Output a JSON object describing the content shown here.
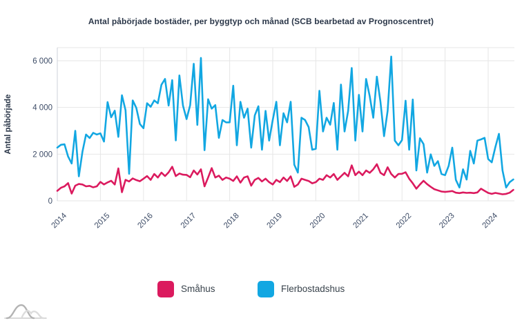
{
  "header": {
    "title": "Antal påbörjade bostäder, per byggtyp och månad (SCB bearbetad av Prognoscentret)"
  },
  "chart_data": {
    "type": "line",
    "title": "Antal påbörjade bostäder, per byggtyp och månad (SCB bearbetad av Prognoscentret)",
    "xlabel": "",
    "ylabel": "Antal påbörjade",
    "x_description": "Monthly values, January 2014 – August 2024",
    "x_tick_labels": [
      "2014",
      "2015",
      "2016",
      "2017",
      "2018",
      "2019",
      "2020",
      "2021",
      "2022",
      "2023",
      "2024"
    ],
    "y_ticks": [
      {
        "label": "0",
        "value": 0
      },
      {
        "label": "2 000",
        "value": 2000
      },
      {
        "label": "4 000",
        "value": 4000
      },
      {
        "label": "6 000",
        "value": 6000
      }
    ],
    "ylim": [
      0,
      6560
    ],
    "grid": true,
    "legend_position": "bottom",
    "series": [
      {
        "name": "Småhus",
        "color": "#db1a5e",
        "values": [
          430,
          560,
          620,
          760,
          310,
          650,
          720,
          700,
          620,
          640,
          580,
          620,
          810,
          700,
          790,
          860,
          700,
          1390,
          370,
          900,
          830,
          960,
          890,
          840,
          950,
          1060,
          900,
          1150,
          1000,
          1210,
          1060,
          1220,
          1460,
          1060,
          1170,
          1120,
          1110,
          1010,
          1300,
          1125,
          1350,
          620,
          1000,
          1400,
          1000,
          1080,
          900,
          1000,
          950,
          850,
          1050,
          780,
          1000,
          1050,
          650,
          900,
          980,
          830,
          950,
          800,
          700,
          900,
          800,
          1000,
          850,
          1050,
          600,
          700,
          950,
          900,
          850,
          750,
          800,
          950,
          900,
          1100,
          1000,
          1150,
          900,
          1050,
          1200,
          1050,
          1520,
          1100,
          1250,
          1100,
          1300,
          1200,
          1350,
          1570,
          1200,
          1100,
          1440,
          1150,
          1000,
          1150,
          1160,
          1225,
          950,
          750,
          520,
          700,
          860,
          715,
          600,
          500,
          450,
          400,
          380,
          400,
          420,
          350,
          330,
          360,
          340,
          350,
          330,
          360,
          520,
          430,
          340,
          300,
          340,
          310,
          280,
          300,
          350,
          470
        ]
      },
      {
        "name": "Flerbostadshus",
        "color": "#12a7e2",
        "values": [
          2280,
          2400,
          2420,
          1900,
          1600,
          3000,
          1050,
          2100,
          2840,
          2690,
          2910,
          2840,
          2890,
          2540,
          4230,
          3580,
          3860,
          2740,
          4520,
          3880,
          1160,
          4300,
          3980,
          3290,
          3110,
          4180,
          4030,
          4300,
          4180,
          4970,
          5220,
          4080,
          5170,
          2590,
          5370,
          4080,
          3500,
          4100,
          5870,
          3250,
          6120,
          2170,
          4350,
          3950,
          4100,
          2700,
          3460,
          3360,
          3360,
          4930,
          2380,
          4240,
          3560,
          3950,
          2280,
          3660,
          4050,
          2190,
          3850,
          2580,
          3460,
          4240,
          2380,
          3750,
          3360,
          4240,
          1550,
          1210,
          3560,
          3460,
          3160,
          2190,
          2230,
          4710,
          2970,
          3560,
          3260,
          4190,
          2190,
          4980,
          2970,
          3850,
          5690,
          2580,
          4540,
          2970,
          5220,
          4490,
          3560,
          5320,
          4240,
          2770,
          3850,
          6180,
          2580,
          2380,
          2600,
          4290,
          2190,
          4340,
          1300,
          2680,
          2430,
          1210,
          1990,
          1500,
          1700,
          1150,
          1100,
          1500,
          2280,
          900,
          570,
          1350,
          910,
          2140,
          1600,
          2580,
          2630,
          2700,
          1790,
          1650,
          2300,
          2870,
          1300,
          570,
          800,
          915
        ]
      }
    ],
    "style": {
      "grid_color": "#e6e6e6",
      "axis_line_color": "#ccd2da",
      "tick_label_color": "#3c4b66",
      "title_color": "#2b3749"
    }
  }
}
